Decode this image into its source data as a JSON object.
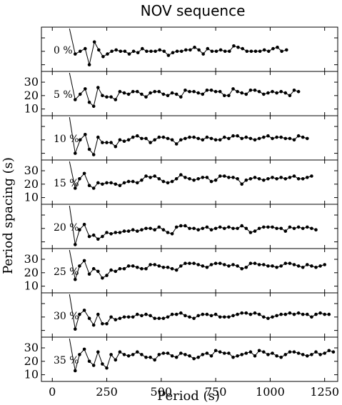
{
  "chart_data": {
    "type": "line",
    "title": "NOV sequence",
    "xlabel": "Period (s)",
    "ylabel": "Period spacing (s)",
    "xlim": [
      -50,
      1310
    ],
    "xticks": [
      0,
      250,
      500,
      750,
      1000,
      1250
    ],
    "ylim": [
      5,
      38
    ],
    "yticks": [
      10,
      20,
      30
    ],
    "grid": false,
    "panels": [
      {
        "label": "0 %",
        "x": [
          105,
          128,
          151,
          170,
          193,
          213,
          233,
          253,
          273,
          293,
          313,
          333,
          353,
          373,
          393,
          413,
          433,
          453,
          473,
          493,
          513,
          533,
          553,
          573,
          593,
          613,
          633,
          653,
          673,
          693,
          713,
          733,
          753,
          773,
          793,
          813,
          833,
          853,
          873,
          893,
          913,
          933,
          953,
          973,
          993,
          1013,
          1033,
          1053,
          1075
        ],
        "y": [
          18,
          20,
          22,
          10,
          27,
          21,
          16,
          18,
          20,
          21,
          20,
          20,
          18,
          20,
          19,
          22,
          20,
          20,
          20,
          21,
          20,
          17,
          19,
          20,
          20,
          21,
          21,
          23,
          21,
          18,
          22,
          20,
          20,
          21,
          20,
          20,
          24,
          23,
          22,
          20,
          20,
          20,
          20,
          21,
          20,
          22,
          23,
          20,
          21
        ]
      },
      {
        "label": "5 %",
        "x": [
          105,
          128,
          151,
          170,
          190,
          210,
          230,
          250,
          270,
          290,
          310,
          330,
          350,
          370,
          390,
          410,
          430,
          450,
          470,
          490,
          510,
          530,
          550,
          570,
          590,
          610,
          630,
          650,
          670,
          690,
          710,
          730,
          750,
          770,
          790,
          810,
          830,
          850,
          870,
          890,
          910,
          930,
          950,
          970,
          990,
          1010,
          1030,
          1050,
          1070,
          1090,
          1110,
          1130
        ],
        "y": [
          17,
          21,
          25,
          15,
          12,
          26,
          20,
          19,
          19,
          17,
          23,
          22,
          21,
          23,
          23,
          21,
          19,
          22,
          23,
          23,
          21,
          20,
          22,
          21,
          19,
          24,
          23,
          23,
          22,
          21,
          24,
          24,
          23,
          23,
          20,
          20,
          25,
          23,
          22,
          21,
          24,
          24,
          23,
          21,
          22,
          23,
          22,
          23,
          22,
          20,
          24,
          23
        ]
      },
      {
        "label": "10 %",
        "x": [
          105,
          128,
          151,
          170,
          190,
          210,
          230,
          250,
          270,
          290,
          310,
          330,
          350,
          370,
          390,
          410,
          430,
          450,
          470,
          490,
          510,
          530,
          550,
          570,
          590,
          610,
          630,
          650,
          670,
          690,
          710,
          730,
          750,
          770,
          790,
          810,
          830,
          850,
          870,
          890,
          910,
          930,
          950,
          970,
          990,
          1010,
          1030,
          1050,
          1070,
          1090,
          1110,
          1130,
          1150,
          1170
        ],
        "y": [
          10,
          20,
          24,
          13,
          9,
          22,
          18,
          18,
          18,
          15,
          20,
          19,
          20,
          22,
          23,
          21,
          21,
          18,
          20,
          22,
          22,
          21,
          20,
          17,
          20,
          21,
          22,
          22,
          21,
          20,
          22,
          21,
          20,
          20,
          22,
          21,
          23,
          23,
          21,
          22,
          21,
          20,
          21,
          22,
          23,
          21,
          22,
          22,
          21,
          21,
          20,
          23,
          22,
          21
        ]
      },
      {
        "label": "15 %",
        "x": [
          105,
          125,
          147,
          170,
          190,
          210,
          230,
          250,
          270,
          290,
          310,
          330,
          350,
          370,
          390,
          410,
          430,
          450,
          470,
          490,
          510,
          530,
          550,
          570,
          590,
          610,
          630,
          650,
          670,
          690,
          710,
          730,
          750,
          770,
          790,
          810,
          830,
          850,
          870,
          890,
          910,
          930,
          950,
          970,
          990,
          1010,
          1030,
          1050,
          1070,
          1090,
          1110,
          1130,
          1150,
          1170,
          1190
        ],
        "y": [
          17,
          24,
          28,
          19,
          17,
          21,
          20,
          21,
          21,
          20,
          19,
          21,
          22,
          22,
          21,
          23,
          26,
          25,
          26,
          24,
          22,
          21,
          22,
          24,
          27,
          25,
          24,
          23,
          24,
          25,
          25,
          22,
          23,
          26,
          26,
          25,
          25,
          24,
          20,
          23,
          24,
          25,
          24,
          23,
          24,
          25,
          24,
          25,
          24,
          25,
          26,
          24,
          24,
          25,
          26
        ]
      },
      {
        "label": "20 %",
        "x": [
          105,
          125,
          147,
          170,
          190,
          210,
          230,
          250,
          270,
          290,
          310,
          330,
          350,
          370,
          390,
          410,
          430,
          450,
          470,
          490,
          510,
          530,
          550,
          570,
          590,
          610,
          630,
          650,
          670,
          690,
          710,
          730,
          750,
          770,
          790,
          810,
          830,
          850,
          870,
          890,
          910,
          930,
          950,
          970,
          990,
          1010,
          1030,
          1050,
          1070,
          1090,
          1110,
          1130,
          1150,
          1170,
          1190,
          1210
        ],
        "y": [
          8,
          19,
          23,
          14,
          15,
          12,
          14,
          17,
          16,
          17,
          17,
          18,
          18,
          19,
          18,
          19,
          20,
          20,
          19,
          21,
          19,
          17,
          16,
          21,
          22,
          22,
          20,
          20,
          19,
          20,
          21,
          19,
          20,
          21,
          20,
          21,
          20,
          20,
          22,
          20,
          17,
          18,
          20,
          21,
          21,
          21,
          20,
          20,
          18,
          21,
          20,
          21,
          20,
          21,
          20,
          19
        ]
      },
      {
        "label": "25 %",
        "x": [
          105,
          125,
          147,
          170,
          190,
          210,
          230,
          250,
          270,
          290,
          310,
          330,
          350,
          370,
          390,
          410,
          430,
          450,
          470,
          490,
          510,
          530,
          550,
          570,
          590,
          610,
          630,
          650,
          670,
          690,
          710,
          730,
          750,
          770,
          790,
          810,
          830,
          850,
          870,
          890,
          910,
          930,
          950,
          970,
          990,
          1010,
          1030,
          1050,
          1070,
          1090,
          1110,
          1130,
          1150,
          1170,
          1190,
          1210,
          1230,
          1250
        ],
        "y": [
          15,
          25,
          29,
          19,
          23,
          21,
          16,
          18,
          22,
          21,
          23,
          23,
          25,
          25,
          24,
          23,
          23,
          26,
          26,
          25,
          24,
          24,
          23,
          22,
          25,
          27,
          27,
          27,
          26,
          25,
          24,
          26,
          27,
          27,
          26,
          25,
          26,
          25,
          23,
          24,
          27,
          27,
          26,
          26,
          25,
          25,
          24,
          25,
          27,
          27,
          26,
          25,
          24,
          26,
          25,
          24,
          25,
          26
        ]
      },
      {
        "label": "30 %",
        "x": [
          105,
          125,
          147,
          170,
          190,
          210,
          230,
          250,
          270,
          290,
          310,
          330,
          350,
          370,
          390,
          410,
          430,
          450,
          470,
          490,
          510,
          530,
          550,
          570,
          590,
          610,
          630,
          650,
          670,
          690,
          710,
          730,
          750,
          770,
          790,
          810,
          830,
          850,
          870,
          890,
          910,
          930,
          950,
          970,
          990,
          1010,
          1030,
          1050,
          1070,
          1090,
          1110,
          1130,
          1150,
          1170,
          1190,
          1210,
          1230,
          1250,
          1270
        ],
        "y": [
          11,
          22,
          25,
          19,
          14,
          22,
          15,
          15,
          20,
          18,
          19,
          20,
          20,
          20,
          22,
          21,
          22,
          21,
          19,
          19,
          19,
          20,
          22,
          22,
          23,
          21,
          20,
          19,
          21,
          22,
          22,
          21,
          22,
          20,
          20,
          20,
          21,
          22,
          23,
          23,
          22,
          23,
          22,
          20,
          19,
          20,
          21,
          22,
          22,
          23,
          22,
          23,
          22,
          22,
          20,
          22,
          23,
          22,
          22
        ]
      },
      {
        "label": "35 %",
        "x": [
          105,
          125,
          147,
          170,
          190,
          210,
          230,
          250,
          270,
          290,
          310,
          330,
          350,
          370,
          390,
          410,
          430,
          450,
          470,
          490,
          510,
          530,
          550,
          570,
          590,
          610,
          630,
          650,
          670,
          690,
          710,
          730,
          750,
          770,
          790,
          810,
          830,
          850,
          870,
          890,
          910,
          930,
          950,
          970,
          990,
          1010,
          1030,
          1050,
          1070,
          1090,
          1110,
          1130,
          1150,
          1170,
          1190,
          1210,
          1230,
          1250,
          1270,
          1290
        ],
        "y": [
          13,
          25,
          29,
          20,
          17,
          27,
          18,
          15,
          25,
          21,
          27,
          25,
          24,
          25,
          27,
          25,
          23,
          23,
          21,
          25,
          26,
          26,
          24,
          23,
          26,
          25,
          24,
          22,
          23,
          25,
          26,
          24,
          28,
          27,
          26,
          26,
          23,
          24,
          25,
          26,
          27,
          24,
          28,
          27,
          25,
          26,
          24,
          23,
          25,
          27,
          27,
          26,
          25,
          24,
          25,
          27,
          25,
          26,
          28,
          27
        ]
      }
    ]
  }
}
